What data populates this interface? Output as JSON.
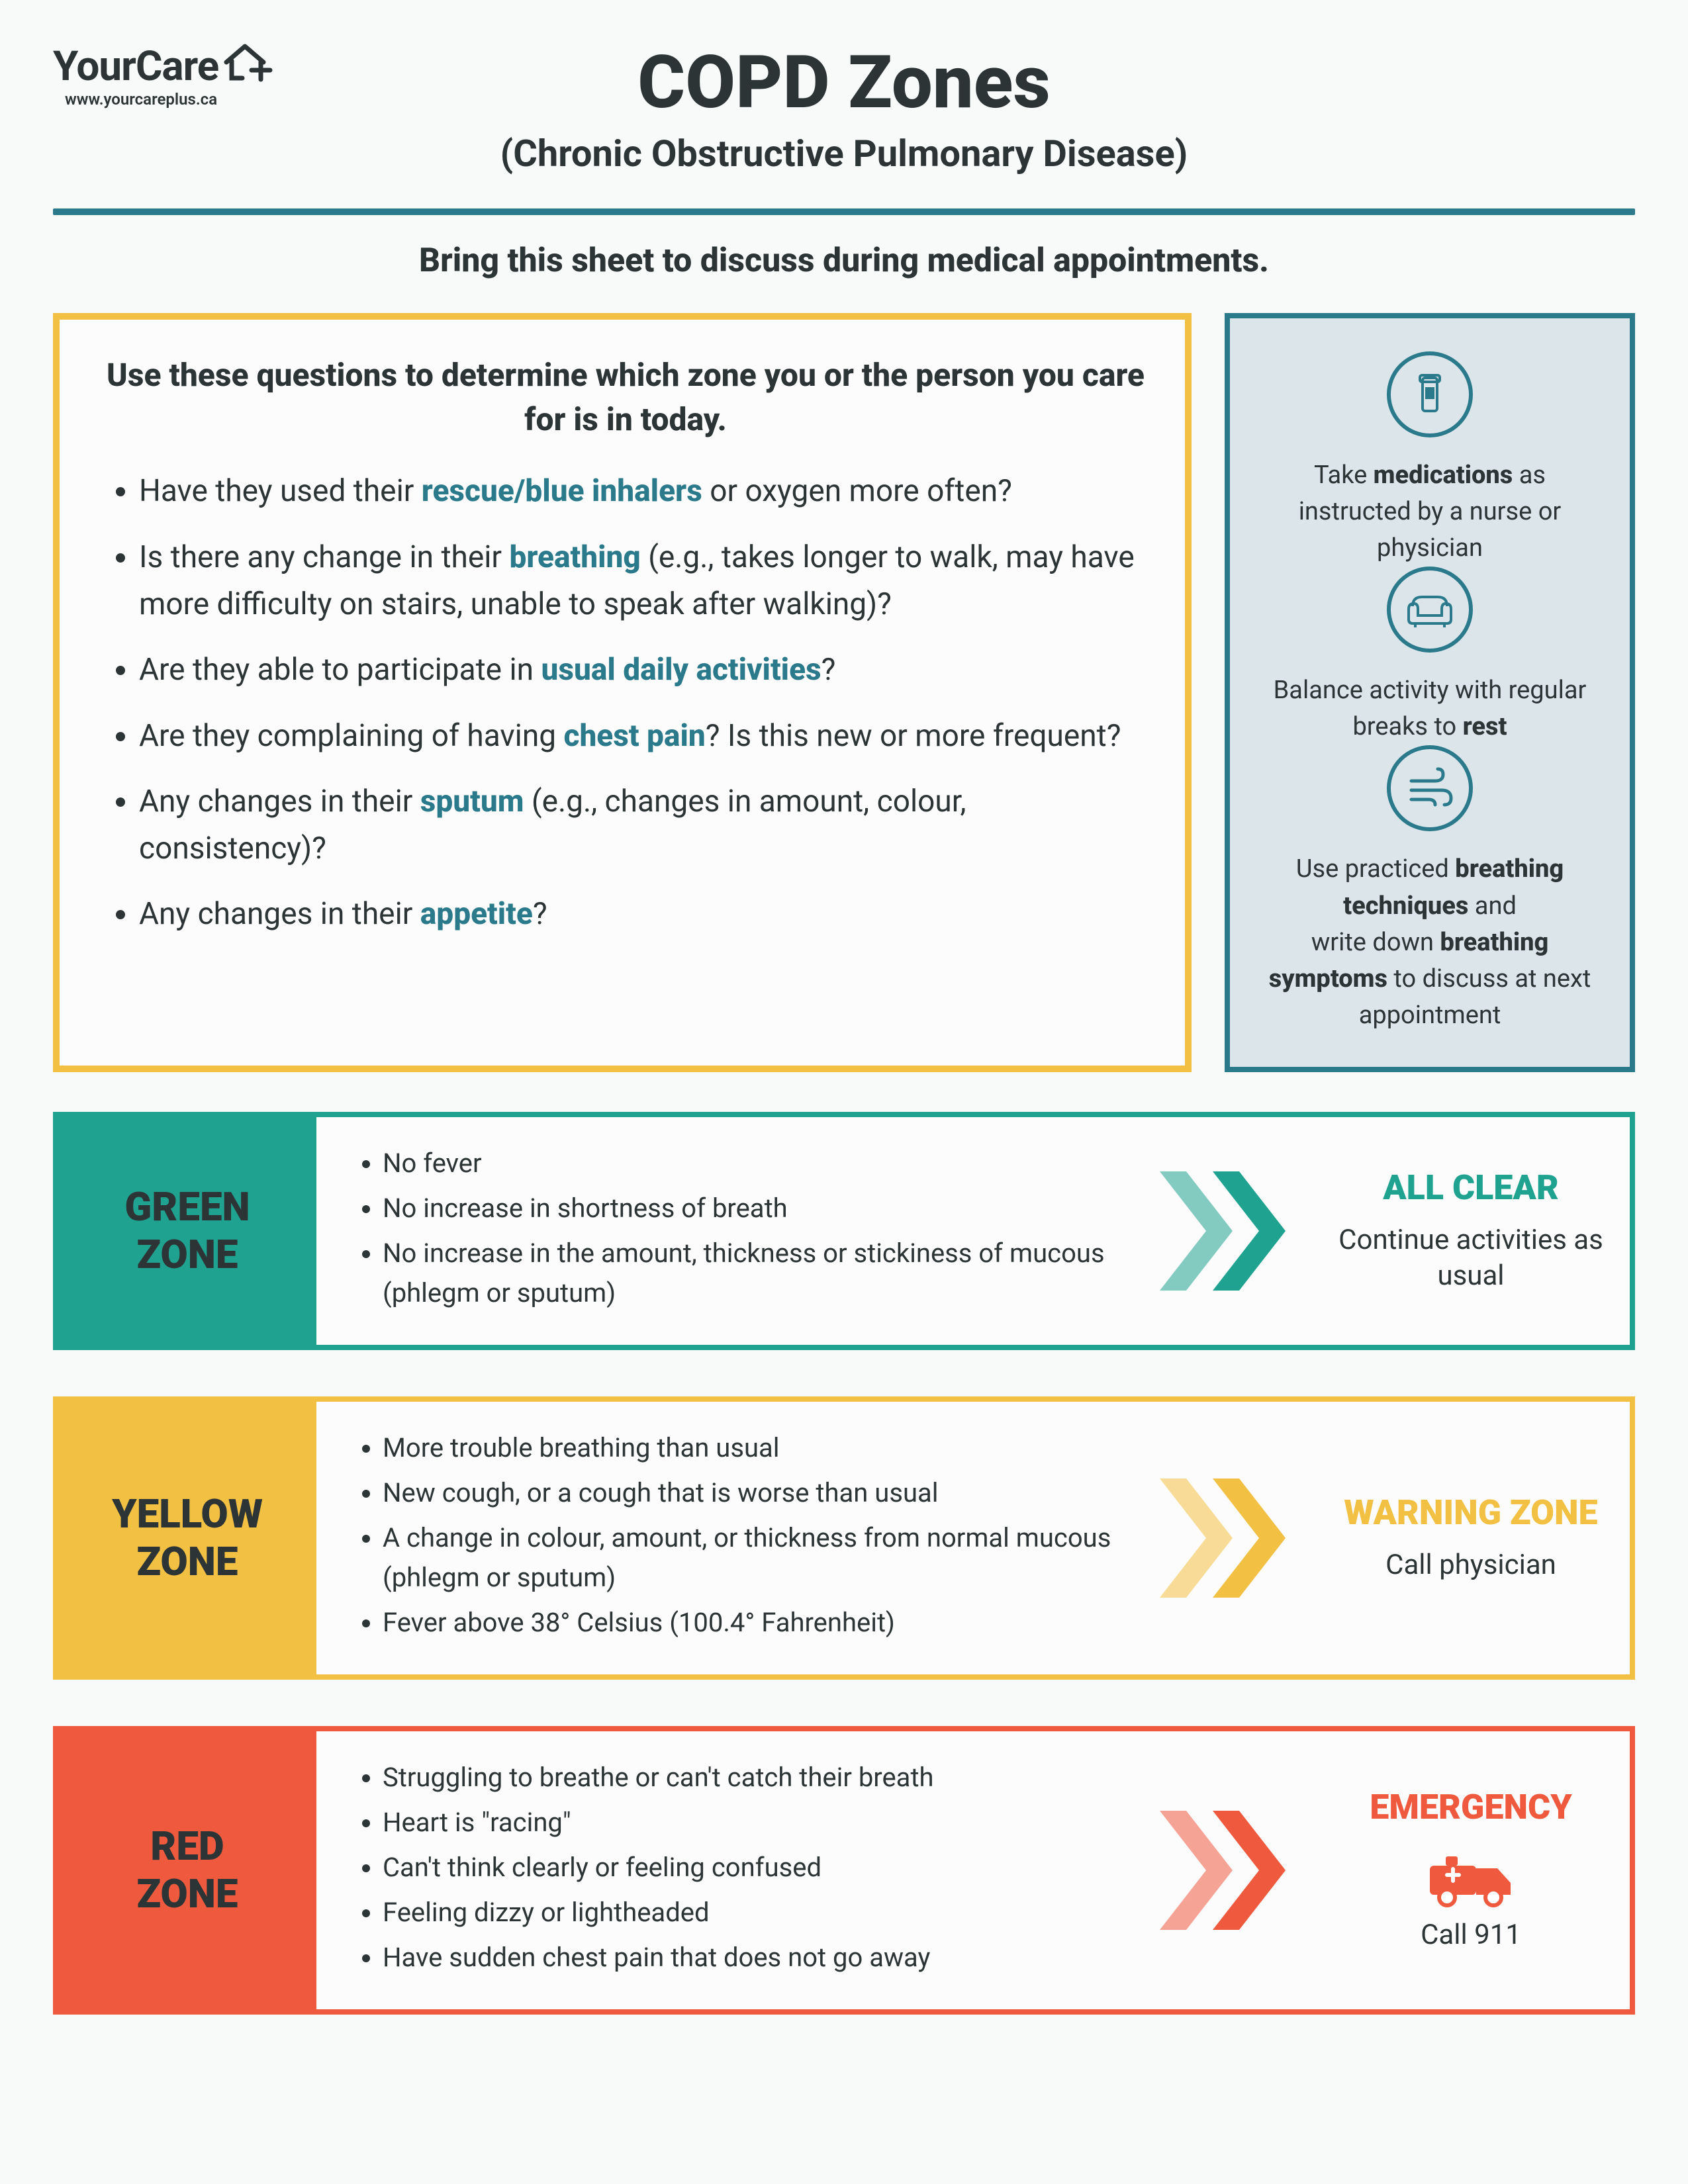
{
  "brand": {
    "name": "YourCare",
    "url": "www.yourcareplus.ca"
  },
  "title": "COPD Zones",
  "subtitle": "(Chronic Obstructive Pulmonary Disease)",
  "instruction": "Bring this sheet to discuss during medical appointments.",
  "colors": {
    "teal": "#2b7a8c",
    "teal_bright": "#1fa390",
    "yellow": "#f2c043",
    "red": "#ef5a3e",
    "text": "#2d3436",
    "panel_bg": "#dce6ea",
    "page_bg": "#f8f9f9"
  },
  "questions": {
    "heading": "Use these questions to determine which zone you or the person you care for is in today.",
    "items": [
      {
        "pre": "Have they used their ",
        "kw": "rescue/blue inhalers",
        "post": " or oxygen more often?"
      },
      {
        "pre": "Is there any change in their ",
        "kw": "breathing",
        "post": " (e.g., takes longer to walk, may have more difficulty on stairs, unable to speak after walking)?"
      },
      {
        "pre": "Are they able to participate in ",
        "kw": "usual daily activities",
        "post": "?"
      },
      {
        "pre": "Are they complaining of having ",
        "kw": "chest pain",
        "post": "? Is this new or more frequent?"
      },
      {
        "pre": "Any changes in their ",
        "kw": "sputum",
        "post": " (e.g., changes in amount, colour, consistency)?"
      },
      {
        "pre": "Any changes in their ",
        "kw": "appetite",
        "post": "?"
      }
    ]
  },
  "tips": [
    {
      "icon": "pill",
      "html": "Take <b>medications</b> as instructed by a nurse or physician"
    },
    {
      "icon": "couch",
      "html": "Balance activity with regular breaks to <b>rest</b>"
    },
    {
      "icon": "wind",
      "html": "Use practiced <b>breathing techniques</b> and<br>write down <b>breathing symptoms</b> to discuss at next appointment"
    }
  ],
  "zones": [
    {
      "name": "GREEN ZONE",
      "color": "#1fa390",
      "symptoms": [
        "No fever",
        "No increase in shortness of breath",
        "No increase in the amount, thickness or stickiness of mucous (phlegm or sputum)"
      ],
      "action_title": "ALL CLEAR",
      "action_sub": "Continue activities as usual",
      "action_icon": null
    },
    {
      "name": "YELLOW ZONE",
      "color": "#f2c043",
      "symptoms": [
        "More trouble breathing than usual",
        "New cough, or a cough that is worse than usual",
        "A change in colour, amount, or thickness from normal mucous (phlegm or sputum)",
        "Fever above 38° Celsius (100.4° Fahrenheit)"
      ],
      "action_title": "WARNING ZONE",
      "action_sub": "Call physician",
      "action_icon": null
    },
    {
      "name": "RED ZONE",
      "color": "#ef5a3e",
      "symptoms": [
        "Struggling to breathe or can't catch their breath",
        "Heart is \"racing\"",
        "Can't think clearly or feeling confused",
        "Feeling dizzy or lightheaded",
        "Have sudden chest pain that does not go away"
      ],
      "action_title": "EMERGENCY",
      "action_sub": "Call 911",
      "action_icon": "ambulance"
    }
  ]
}
